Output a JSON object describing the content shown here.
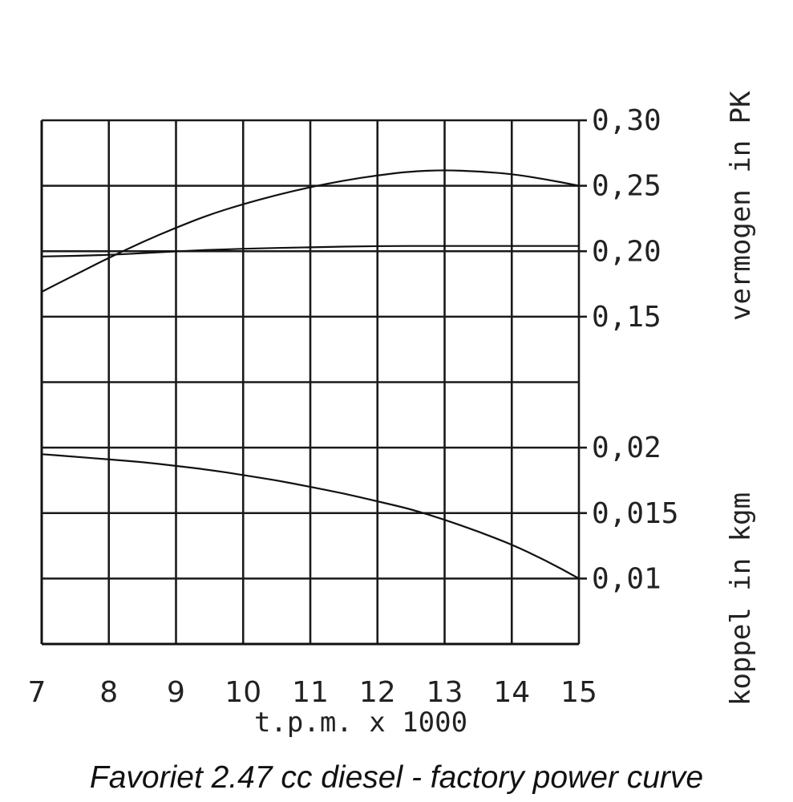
{
  "caption": "Favoriet 2.47 cc diesel - factory power curve",
  "chart_data": {
    "type": "line",
    "xlabel": "t.p.m. x 1000",
    "x_ticks": [
      "7",
      "8",
      "9",
      "10",
      "11",
      "12",
      "13",
      "14",
      "15"
    ],
    "xlim": [
      7,
      15
    ],
    "grid": true,
    "power_axis": {
      "label": "vermogen in PK",
      "ticks": [
        "0,30",
        "0,25",
        "0,20",
        "0,15"
      ],
      "tick_values": [
        0.3,
        0.25,
        0.2,
        0.15
      ]
    },
    "torque_axis": {
      "label": "koppel in kgm",
      "ticks": [
        "0,02",
        "0,015",
        "0,01"
      ],
      "tick_values": [
        0.02,
        0.015,
        0.01
      ]
    },
    "series": [
      {
        "axis": "power",
        "x": [
          7,
          7.5,
          8,
          8.5,
          9,
          9.5,
          10,
          10.5,
          11,
          11.5,
          12,
          12.5,
          13,
          13.5,
          14,
          14.5,
          15
        ],
        "values": [
          0.169,
          0.182,
          0.195,
          0.207,
          0.218,
          0.228,
          0.236,
          0.243,
          0.249,
          0.254,
          0.258,
          0.261,
          0.262,
          0.261,
          0.259,
          0.255,
          0.25
        ]
      },
      {
        "axis": "power",
        "x": [
          7,
          8,
          9,
          10,
          11,
          12,
          13,
          14,
          15
        ],
        "values": [
          0.196,
          0.197,
          0.2,
          0.202,
          0.203,
          0.204,
          0.204,
          0.204,
          0.204
        ],
        "y_scale_note": ""
      },
      {
        "axis": "torque",
        "x": [
          7,
          7.5,
          8,
          8.5,
          9,
          9.5,
          10,
          10.5,
          11,
          11.5,
          12,
          12.5,
          13,
          13.5,
          14,
          14.5,
          15
        ],
        "values": [
          0.0195,
          0.0193,
          0.0191,
          0.0189,
          0.0186,
          0.0183,
          0.0179,
          0.0175,
          0.017,
          0.0165,
          0.0159,
          0.0153,
          0.0145,
          0.0136,
          0.0126,
          0.0114,
          0.01
        ]
      }
    ]
  }
}
